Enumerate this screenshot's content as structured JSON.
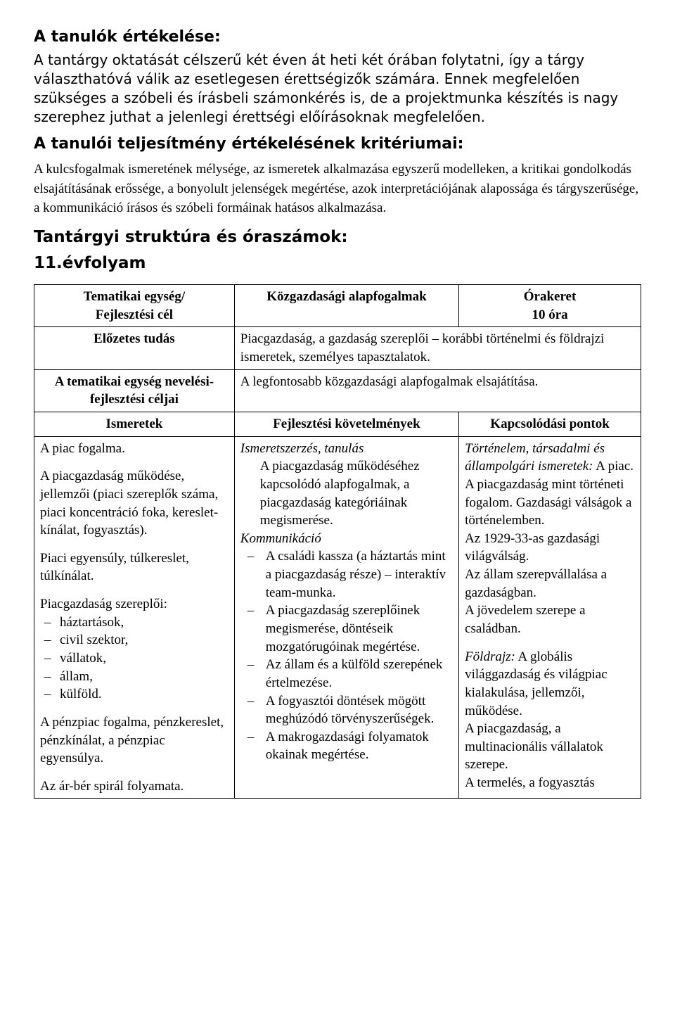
{
  "title_eval": "A tanulók értékelése:",
  "para_eval": "A tantárgy oktatását célszerű két éven át heti két órában folytatni, így a tárgy választhatóvá válik az  esetlegesen érettségizők számára. Ennek megfelelően szükséges a szóbeli és írásbeli számonkérés is, de a projektmunka készítés is nagy szerephez juthat a jelenlegi érettségi előírásoknak megfelelően.",
  "title_criteria": "A tanulói teljesítmény értékelésének kritériumai:",
  "para_criteria": "A kulcsfogalmak ismeretének mélysége, az ismeretek alkalmazása egyszerű modelleken, a kritikai gondolkodás elsajátításának erőssége, a bonyolult jelenségek megértése, azok interpretációjának alapossága és tárgyszerűsége, a kommunikáció írásos és szóbeli formáinak hatásos alkalmazása.",
  "title_struct": "Tantárgyi struktúra és óraszámok:",
  "grade": "11.évfolyam",
  "table": {
    "r1_c1_a": "Tematikai egység/",
    "r1_c1_b": "Fejlesztési cél",
    "r1_c2": "Közgazdasági alapfogalmak",
    "r1_c3_a": "Órakeret",
    "r1_c3_b": "10 óra",
    "r2_c1": "Előzetes tudás",
    "r2_c2": "Piacgazdaság, a gazdaság szereplői – korábbi történelmi és földrajzi ismeretek, személyes tapasztalatok.",
    "r3_c1": "A tematikai egység nevelési-fejlesztési céljai",
    "r3_c2": "A legfontosabb közgazdasági alapfogalmak elsajátítása.",
    "hdr_ismeretek": "Ismeretek",
    "hdr_fejl": "Fejlesztési követelmények",
    "hdr_kapcs": "Kapcsolódási pontok"
  },
  "ismeretek": {
    "p1": "A piac fogalma.",
    "p2": "A piacgazdaság működése, jellemzői (piaci szereplők száma, piaci koncentráció foka, kereslet-kínálat, fogyasztás).",
    "p3": "Piaci egyensúly, túlkereslet, túlkínálat.",
    "p4": "Piacgazdaság szereplői:",
    "list": [
      "háztartások,",
      "civil szektor,",
      "vállatok,",
      "állam,",
      "külföld."
    ],
    "p5": "A pénzpiac fogalma, pénzkereslet, pénzkínálat, a pénzpiac egyensúlya.",
    "p6": "Az ár-bér spirál folyamata."
  },
  "fejl": {
    "h1_italic": "Ismeretszerzés, tanulás",
    "h1_body": "A piacgazdaság működéséhez kapcsolódó alapfogalmak, a piacgazdaság kategóriáinak megismerése.",
    "h2_italic": "Kommunikáció",
    "list": [
      "A családi kassza\n(a háztartás mint a piacgazdaság része) – interaktív team-munka.",
      "A piacgazdaság szereplőinek megismerése, döntéseik mozgatórugóinak megértése.",
      "Az állam és a külföld szerepének értelmezése.",
      "A fogyasztói döntések mögött meghúzódó törvényszerűségek.",
      "A makrogazdasági folyamatok okainak megértése."
    ]
  },
  "kapcs": {
    "lead_italic": "Történelem, társadalmi és állampolgári ismeretek:",
    "lead_rest": " A piac. A piacgazdaság mint történeti fogalom. Gazdasági válságok a történelemben.",
    "line2": "Az 1929-33-as gazdasági világválság.",
    "line3": "Az állam szerepvállalása a gazdaságban.",
    "line4": "A jövedelem szerepe a családban.",
    "geo_italic": "Földrajz:",
    "geo_rest": " A globális világgazdaság és világpiac kialakulása, jellemzői, működése.",
    "geo2": "A piacgazdaság, a multinacionális vállalatok szerepe.",
    "geo3": "A termelés, a fogyasztás"
  }
}
